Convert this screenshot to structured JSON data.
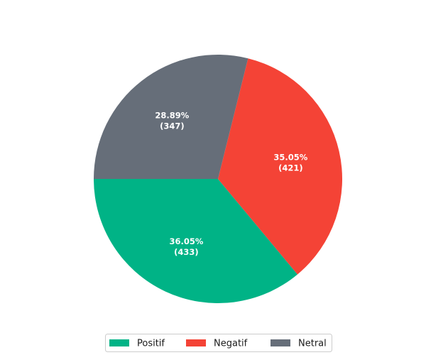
{
  "chart_data": {
    "type": "pie",
    "slices": [
      {
        "label": "Positif",
        "value": 433,
        "percent_label": "36.05%",
        "count_label": "(433)",
        "color": "#00b386"
      },
      {
        "label": "Negatif",
        "value": 421,
        "percent_label": "35.05%",
        "count_label": "(421)",
        "color": "#f44336"
      },
      {
        "label": "Netral",
        "value": 347,
        "percent_label": "28.89%",
        "count_label": "(347)",
        "color": "#666e79"
      }
    ],
    "start_angle_deg": 180,
    "direction": "counterclockwise",
    "legend_position": "bottom-center",
    "legend_columns": 3
  }
}
